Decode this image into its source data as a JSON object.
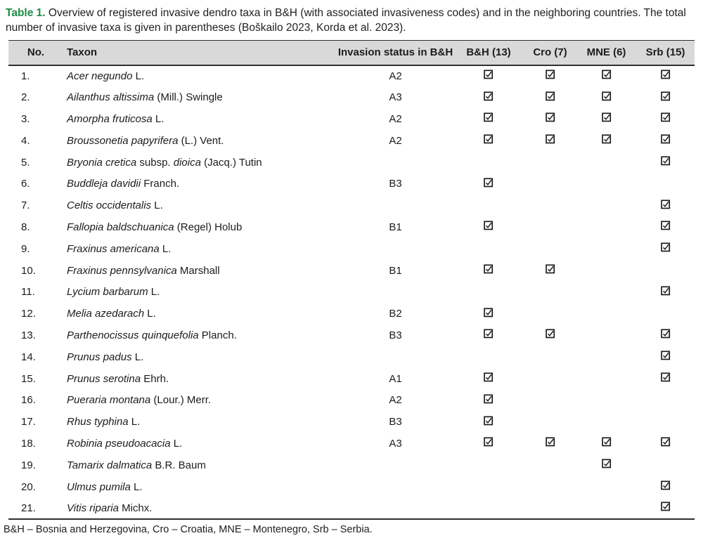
{
  "caption": {
    "label": "Table 1.",
    "text": " Overview of registered invasive dendro taxa in B&H (with associated invasiveness codes) and in the neighboring countries. The total number of invasive taxa is given in parentheses (Boškailo 2023, Korda et al. 2023)."
  },
  "colors": {
    "caption_label": "#1e8b47",
    "header_bg": "#d9d9d9",
    "border": "#2f2f2f",
    "text": "#1c1c1c"
  },
  "icons": {
    "checked": "checked-checkbox-icon"
  },
  "table": {
    "columns": [
      "No.",
      "Taxon",
      "Invasion status in B&H",
      "B&H (13)",
      "Cro (7)",
      "MNE (6)",
      "Srb (15)"
    ],
    "rows": [
      {
        "no": "1.",
        "taxon": [
          {
            "t": "Acer negundo",
            "i": true
          },
          {
            "t": " L.",
            "i": false
          }
        ],
        "status": "A2",
        "checks": [
          true,
          true,
          true,
          true
        ]
      },
      {
        "no": "2.",
        "taxon": [
          {
            "t": "Ailanthus altissima",
            "i": true
          },
          {
            "t": " (Mill.) Swingle",
            "i": false
          }
        ],
        "status": "A3",
        "checks": [
          true,
          true,
          true,
          true
        ]
      },
      {
        "no": "3.",
        "taxon": [
          {
            "t": "Amorpha fruticosa",
            "i": true
          },
          {
            "t": " L.",
            "i": false
          }
        ],
        "status": "A2",
        "checks": [
          true,
          true,
          true,
          true
        ]
      },
      {
        "no": "4.",
        "taxon": [
          {
            "t": "Broussonetia papyrifera",
            "i": true
          },
          {
            "t": " (L.) Vent.",
            "i": false
          }
        ],
        "status": "A2",
        "checks": [
          true,
          true,
          true,
          true
        ]
      },
      {
        "no": "5.",
        "taxon": [
          {
            "t": "Bryonia cretica",
            "i": true
          },
          {
            "t": " subsp. ",
            "i": false
          },
          {
            "t": "dioica",
            "i": true
          },
          {
            "t": " (Jacq.) Tutin",
            "i": false
          }
        ],
        "status": "",
        "checks": [
          false,
          false,
          false,
          true
        ]
      },
      {
        "no": "6.",
        "taxon": [
          {
            "t": "Buddleja davidii",
            "i": true
          },
          {
            "t": " Franch.",
            "i": false
          }
        ],
        "status": "B3",
        "checks": [
          true,
          false,
          false,
          false
        ]
      },
      {
        "no": "7.",
        "taxon": [
          {
            "t": "Celtis occidentalis",
            "i": true
          },
          {
            "t": " L.",
            "i": false
          }
        ],
        "status": "",
        "checks": [
          false,
          false,
          false,
          true
        ]
      },
      {
        "no": "8.",
        "taxon": [
          {
            "t": "Fallopia baldschuanica",
            "i": true
          },
          {
            "t": " (Regel) Holub",
            "i": false
          }
        ],
        "status": "B1",
        "checks": [
          true,
          false,
          false,
          true
        ]
      },
      {
        "no": "9.",
        "taxon": [
          {
            "t": "Fraxinus americana",
            "i": true
          },
          {
            "t": " L.",
            "i": false
          }
        ],
        "status": "",
        "checks": [
          false,
          false,
          false,
          true
        ]
      },
      {
        "no": "10.",
        "taxon": [
          {
            "t": "Fraxinus pennsylvanica",
            "i": true
          },
          {
            "t": " Marshall",
            "i": false
          }
        ],
        "status": "B1",
        "checks": [
          true,
          true,
          false,
          false
        ]
      },
      {
        "no": "11.",
        "taxon": [
          {
            "t": "Lycium barbarum",
            "i": true
          },
          {
            "t": " L.",
            "i": false
          }
        ],
        "status": "",
        "checks": [
          false,
          false,
          false,
          true
        ]
      },
      {
        "no": "12.",
        "taxon": [
          {
            "t": "Melia azedarach",
            "i": true
          },
          {
            "t": " L.",
            "i": false
          }
        ],
        "status": "B2",
        "checks": [
          true,
          false,
          false,
          false
        ]
      },
      {
        "no": "13.",
        "taxon": [
          {
            "t": "Parthenocissus quinquefolia",
            "i": true
          },
          {
            "t": " Planch.",
            "i": false
          }
        ],
        "status": "B3",
        "checks": [
          true,
          true,
          false,
          true
        ]
      },
      {
        "no": "14.",
        "taxon": [
          {
            "t": "Prunus padus",
            "i": true
          },
          {
            "t": " L.",
            "i": false
          }
        ],
        "status": "",
        "checks": [
          false,
          false,
          false,
          true
        ]
      },
      {
        "no": "15.",
        "taxon": [
          {
            "t": "Prunus serotina",
            "i": true
          },
          {
            "t": " Ehrh.",
            "i": false
          }
        ],
        "status": "A1",
        "checks": [
          true,
          false,
          false,
          true
        ]
      },
      {
        "no": "16.",
        "taxon": [
          {
            "t": "Pueraria montana",
            "i": true
          },
          {
            "t": " (Lour.) Merr.",
            "i": false
          }
        ],
        "status": "A2",
        "checks": [
          true,
          false,
          false,
          false
        ]
      },
      {
        "no": "17.",
        "taxon": [
          {
            "t": "Rhus typhina",
            "i": true
          },
          {
            "t": " L.",
            "i": false
          }
        ],
        "status": "B3",
        "checks": [
          true,
          false,
          false,
          false
        ]
      },
      {
        "no": "18.",
        "taxon": [
          {
            "t": "Robinia pseudoacacia",
            "i": true
          },
          {
            "t": " L.",
            "i": false
          }
        ],
        "status": "A3",
        "checks": [
          true,
          true,
          true,
          true
        ]
      },
      {
        "no": "19.",
        "taxon": [
          {
            "t": "Tamarix dalmatica",
            "i": true
          },
          {
            "t": " B.R. Baum",
            "i": false
          }
        ],
        "status": "",
        "checks": [
          false,
          false,
          true,
          false
        ]
      },
      {
        "no": "20.",
        "taxon": [
          {
            "t": "Ulmus pumila",
            "i": true
          },
          {
            "t": " L.",
            "i": false
          }
        ],
        "status": "",
        "checks": [
          false,
          false,
          false,
          true
        ]
      },
      {
        "no": "21.",
        "taxon": [
          {
            "t": "Vitis riparia",
            "i": true
          },
          {
            "t": " Michx.",
            "i": false
          }
        ],
        "status": "",
        "checks": [
          false,
          false,
          false,
          true
        ]
      }
    ]
  },
  "footnote": "B&H – Bosnia and Herzegovina, Cro – Croatia, MNE – Montenegro, Srb – Serbia."
}
